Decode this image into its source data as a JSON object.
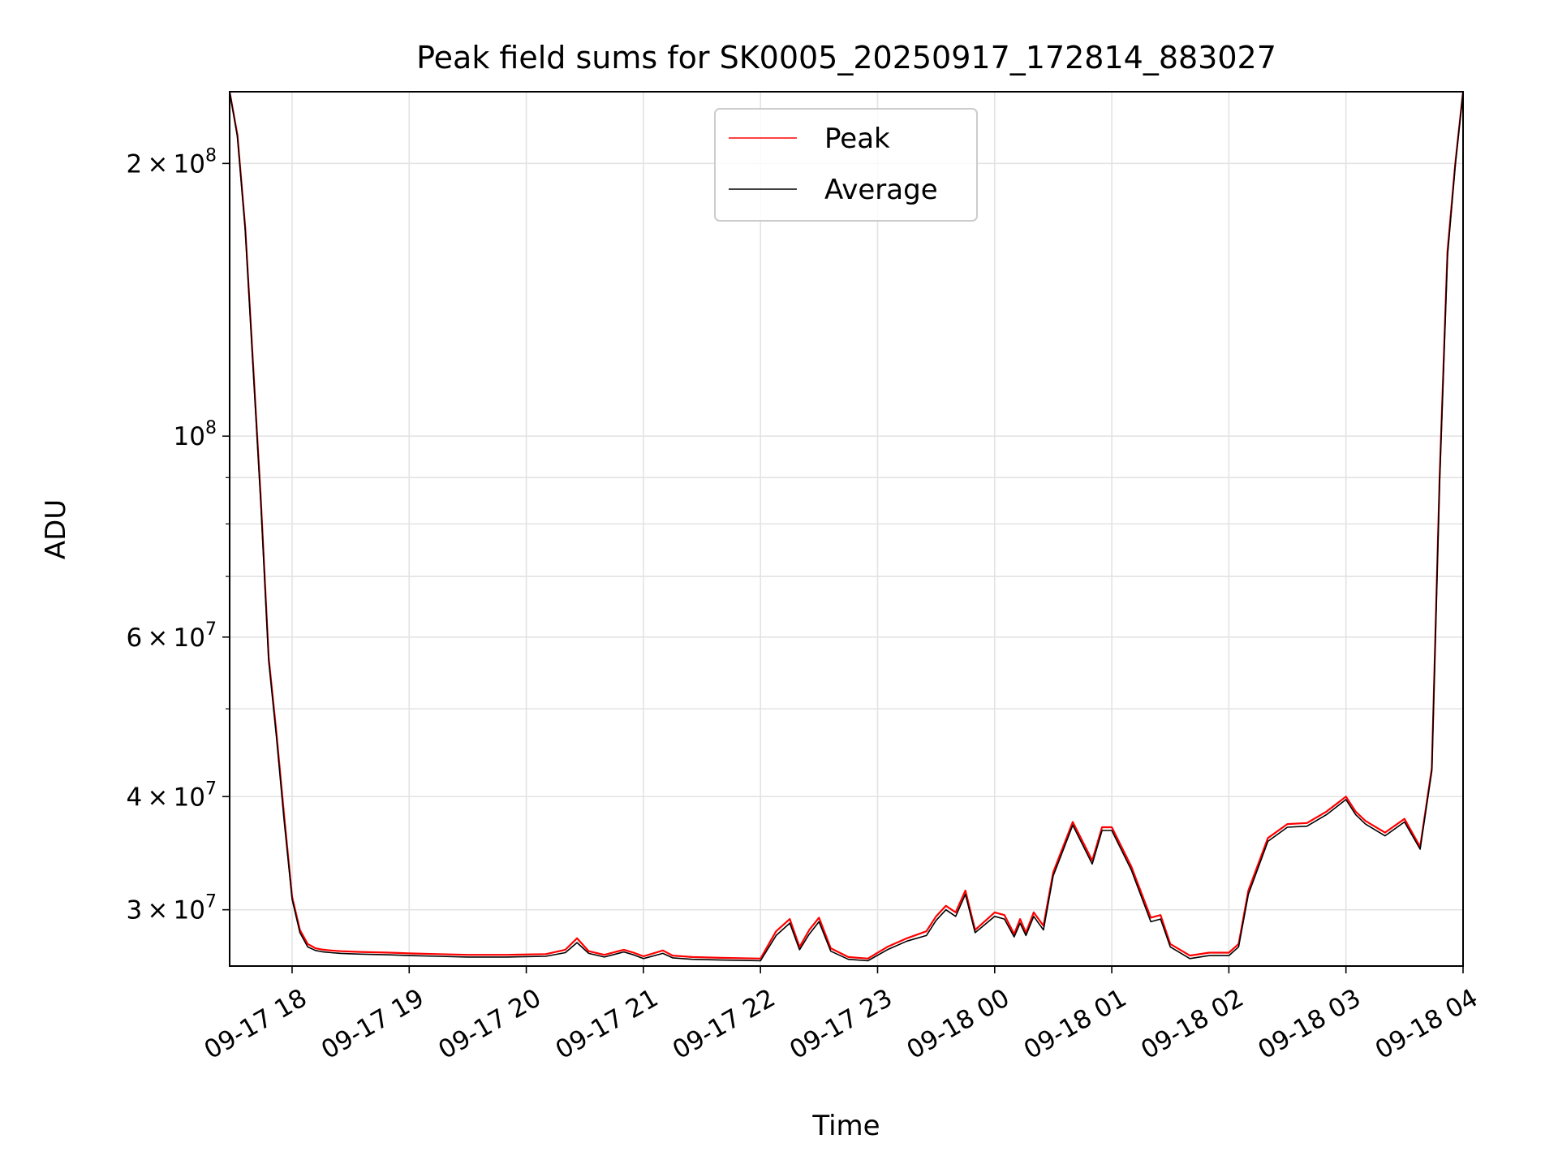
{
  "chart_data": {
    "type": "line",
    "title": "Peak field sums for SK0005_20250917_172814_883027",
    "xlabel": "Time",
    "ylabel": "ADU",
    "y_scale": "log",
    "grid": true,
    "legend_position": "top-center",
    "x_range": [
      "2025-09-17 17:28",
      "2025-09-18 04:00"
    ],
    "ylim": [
      26000000,
      240000000
    ],
    "x_ticks": [
      {
        "t": "2025-09-17 18:00",
        "label": "09-17 18"
      },
      {
        "t": "2025-09-17 19:00",
        "label": "09-17 19"
      },
      {
        "t": "2025-09-17 20:00",
        "label": "09-17 20"
      },
      {
        "t": "2025-09-17 21:00",
        "label": "09-17 21"
      },
      {
        "t": "2025-09-17 22:00",
        "label": "09-17 22"
      },
      {
        "t": "2025-09-17 23:00",
        "label": "09-17 23"
      },
      {
        "t": "2025-09-18 00:00",
        "label": "09-18 00"
      },
      {
        "t": "2025-09-18 01:00",
        "label": "09-18 01"
      },
      {
        "t": "2025-09-18 02:00",
        "label": "09-18 02"
      },
      {
        "t": "2025-09-18 03:00",
        "label": "09-18 03"
      },
      {
        "t": "2025-09-18 04:00",
        "label": "09-18 04"
      }
    ],
    "y_major_ticks": [
      {
        "value": 30000000,
        "mantissa": "3",
        "exp": "7"
      },
      {
        "value": 40000000,
        "mantissa": "4",
        "exp": "7"
      },
      {
        "value": 60000000,
        "mantissa": "6",
        "exp": "7"
      },
      {
        "value": 100000000,
        "mantissa": "",
        "exp": "8"
      },
      {
        "value": 200000000,
        "mantissa": "2",
        "exp": "8"
      }
    ],
    "y_minor_ticks": [
      50000000,
      70000000,
      80000000,
      90000000
    ],
    "series": [
      {
        "name": "Peak",
        "color": "#ff0000",
        "x": [
          "2025-09-17 17:28",
          "2025-09-17 17:32",
          "2025-09-17 17:36",
          "2025-09-17 17:40",
          "2025-09-17 17:44",
          "2025-09-17 17:48",
          "2025-09-17 17:52",
          "2025-09-17 17:56",
          "2025-09-17 18:00",
          "2025-09-17 18:04",
          "2025-09-17 18:08",
          "2025-09-17 18:12",
          "2025-09-17 18:16",
          "2025-09-17 18:20",
          "2025-09-17 18:25",
          "2025-09-17 18:35",
          "2025-09-17 18:50",
          "2025-09-17 19:00",
          "2025-09-17 19:15",
          "2025-09-17 19:30",
          "2025-09-17 19:50",
          "2025-09-17 20:10",
          "2025-09-17 20:20",
          "2025-09-17 20:26",
          "2025-09-17 20:32",
          "2025-09-17 20:40",
          "2025-09-17 20:50",
          "2025-09-17 20:55",
          "2025-09-17 21:00",
          "2025-09-17 21:10",
          "2025-09-17 21:15",
          "2025-09-17 21:25",
          "2025-09-17 21:40",
          "2025-09-17 22:00",
          "2025-09-17 22:08",
          "2025-09-17 22:15",
          "2025-09-17 22:20",
          "2025-09-17 22:25",
          "2025-09-17 22:30",
          "2025-09-17 22:36",
          "2025-09-17 22:45",
          "2025-09-17 22:55",
          "2025-09-17 23:05",
          "2025-09-17 23:15",
          "2025-09-17 23:25",
          "2025-09-17 23:30",
          "2025-09-17 23:35",
          "2025-09-17 23:40",
          "2025-09-17 23:45",
          "2025-09-17 23:50",
          "2025-09-18 00:00",
          "2025-09-18 00:05",
          "2025-09-18 00:10",
          "2025-09-18 00:13",
          "2025-09-18 00:16",
          "2025-09-18 00:20",
          "2025-09-18 00:25",
          "2025-09-18 00:30",
          "2025-09-18 00:40",
          "2025-09-18 00:50",
          "2025-09-18 00:55",
          "2025-09-18 01:00",
          "2025-09-18 01:10",
          "2025-09-18 01:20",
          "2025-09-18 01:25",
          "2025-09-18 01:30",
          "2025-09-18 01:40",
          "2025-09-18 01:50",
          "2025-09-18 02:00",
          "2025-09-18 02:05",
          "2025-09-18 02:10",
          "2025-09-18 02:20",
          "2025-09-18 02:30",
          "2025-09-18 02:40",
          "2025-09-18 02:50",
          "2025-09-18 03:00",
          "2025-09-18 03:05",
          "2025-09-18 03:10",
          "2025-09-18 03:20",
          "2025-09-18 03:30",
          "2025-09-18 03:38",
          "2025-09-18 03:44",
          "2025-09-18 03:48",
          "2025-09-18 03:52",
          "2025-09-18 03:56",
          "2025-09-18 04:00"
        ],
        "y": [
          240000000,
          215000000,
          170000000,
          120000000,
          85000000,
          57000000,
          47000000,
          38000000,
          31000000,
          28500000,
          27500000,
          27200000,
          27100000,
          27050000,
          27000000,
          26950000,
          26900000,
          26850000,
          26800000,
          26750000,
          26750000,
          26800000,
          27100000,
          27900000,
          27000000,
          26750000,
          27100000,
          26900000,
          26650000,
          27050000,
          26700000,
          26600000,
          26550000,
          26500000,
          28400000,
          29300000,
          27300000,
          28500000,
          29400000,
          27200000,
          26600000,
          26500000,
          27300000,
          27900000,
          28400000,
          29500000,
          30300000,
          29800000,
          31500000,
          28500000,
          29800000,
          29600000,
          28200000,
          29300000,
          28300000,
          29800000,
          28800000,
          33000000,
          37500000,
          34000000,
          37000000,
          37000000,
          33500000,
          29400000,
          29600000,
          27500000,
          26700000,
          26900000,
          26900000,
          27500000,
          31500000,
          36000000,
          37300000,
          37400000,
          38500000,
          40000000,
          38500000,
          37600000,
          36500000,
          37800000,
          35200000,
          43000000,
          90000000,
          160000000,
          200000000,
          240000000
        ]
      },
      {
        "name": "Average",
        "color": "#000000",
        "x": [
          "2025-09-17 17:28",
          "2025-09-17 17:32",
          "2025-09-17 17:36",
          "2025-09-17 17:40",
          "2025-09-17 17:44",
          "2025-09-17 17:48",
          "2025-09-17 17:52",
          "2025-09-17 17:56",
          "2025-09-17 18:00",
          "2025-09-17 18:04",
          "2025-09-17 18:08",
          "2025-09-17 18:12",
          "2025-09-17 18:16",
          "2025-09-17 18:20",
          "2025-09-17 18:25",
          "2025-09-17 18:35",
          "2025-09-17 18:50",
          "2025-09-17 19:00",
          "2025-09-17 19:15",
          "2025-09-17 19:30",
          "2025-09-17 19:50",
          "2025-09-17 20:10",
          "2025-09-17 20:20",
          "2025-09-17 20:26",
          "2025-09-17 20:32",
          "2025-09-17 20:40",
          "2025-09-17 20:50",
          "2025-09-17 20:55",
          "2025-09-17 21:00",
          "2025-09-17 21:10",
          "2025-09-17 21:15",
          "2025-09-17 21:25",
          "2025-09-17 21:40",
          "2025-09-17 22:00",
          "2025-09-17 22:08",
          "2025-09-17 22:15",
          "2025-09-17 22:20",
          "2025-09-17 22:25",
          "2025-09-17 22:30",
          "2025-09-17 22:36",
          "2025-09-17 22:45",
          "2025-09-17 22:55",
          "2025-09-17 23:05",
          "2025-09-17 23:15",
          "2025-09-17 23:25",
          "2025-09-17 23:30",
          "2025-09-17 23:35",
          "2025-09-17 23:40",
          "2025-09-17 23:45",
          "2025-09-17 23:50",
          "2025-09-18 00:00",
          "2025-09-18 00:05",
          "2025-09-18 00:10",
          "2025-09-18 00:13",
          "2025-09-18 00:16",
          "2025-09-18 00:20",
          "2025-09-18 00:25",
          "2025-09-18 00:30",
          "2025-09-18 00:40",
          "2025-09-18 00:50",
          "2025-09-18 00:55",
          "2025-09-18 01:00",
          "2025-09-18 01:10",
          "2025-09-18 01:20",
          "2025-09-18 01:25",
          "2025-09-18 01:30",
          "2025-09-18 01:40",
          "2025-09-18 01:50",
          "2025-09-18 02:00",
          "2025-09-18 02:05",
          "2025-09-18 02:10",
          "2025-09-18 02:20",
          "2025-09-18 02:30",
          "2025-09-18 02:40",
          "2025-09-18 02:50",
          "2025-09-18 03:00",
          "2025-09-18 03:05",
          "2025-09-18 03:10",
          "2025-09-18 03:20",
          "2025-09-18 03:30",
          "2025-09-18 03:38",
          "2025-09-18 03:44",
          "2025-09-18 03:48",
          "2025-09-18 03:52",
          "2025-09-18 03:56",
          "2025-09-18 04:00"
        ],
        "y": [
          240000000,
          214000000,
          169000000,
          119000000,
          84000000,
          56500000,
          46500000,
          37500000,
          30800000,
          28300000,
          27300000,
          27050000,
          26950000,
          26900000,
          26850000,
          26800000,
          26750000,
          26700000,
          26650000,
          26600000,
          26600000,
          26650000,
          26900000,
          27600000,
          26850000,
          26600000,
          26950000,
          26750000,
          26500000,
          26850000,
          26550000,
          26450000,
          26400000,
          26350000,
          28100000,
          29000000,
          27100000,
          28200000,
          29100000,
          27000000,
          26450000,
          26350000,
          27100000,
          27700000,
          28100000,
          29200000,
          30000000,
          29500000,
          31200000,
          28300000,
          29500000,
          29300000,
          28000000,
          29000000,
          28100000,
          29500000,
          28500000,
          32700000,
          37200000,
          33700000,
          36700000,
          36700000,
          33200000,
          29100000,
          29300000,
          27300000,
          26500000,
          26700000,
          26700000,
          27300000,
          31200000,
          35700000,
          37000000,
          37100000,
          38200000,
          39700000,
          38200000,
          37300000,
          36200000,
          37500000,
          35000000,
          42700000,
          89000000,
          158000000,
          199000000,
          240000000
        ]
      }
    ]
  }
}
